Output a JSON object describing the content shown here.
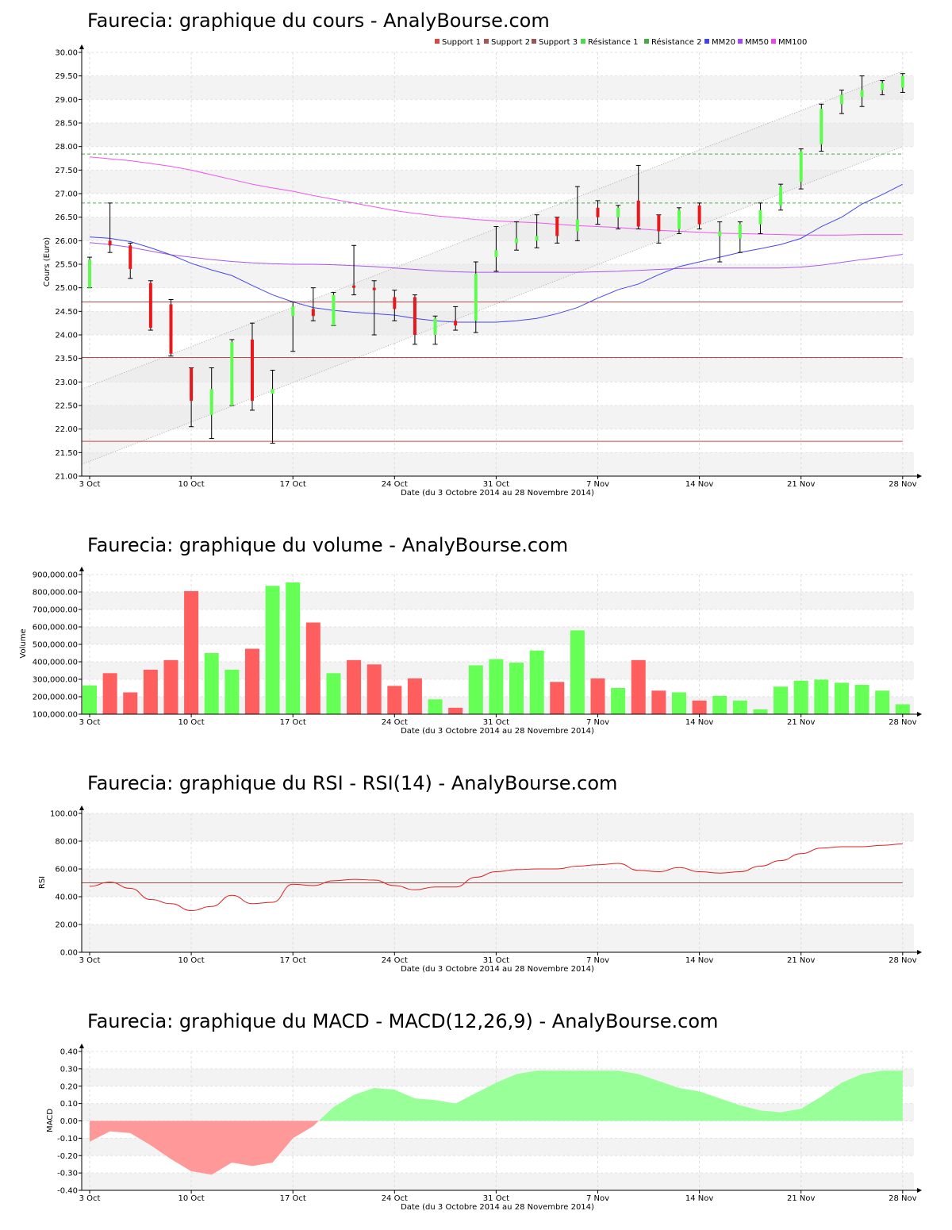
{
  "page": {
    "title": "Faurecia – AnalyBourse.com"
  },
  "x_axis": {
    "labels": [
      "3 Oct",
      "10 Oct",
      "17 Oct",
      "24 Oct",
      "31 Oct",
      "7 Nov",
      "14 Nov",
      "21 Nov",
      "28 Nov"
    ],
    "label_day_index": [
      0,
      5,
      10,
      15,
      20,
      25,
      30,
      35,
      40
    ],
    "title": "Date (du 3 Octobre 2014 au 28 Novembre 2014)"
  },
  "colors": {
    "up": "#5dfc4f",
    "down": "#e9181a",
    "volume_up": "#66ff55",
    "volume_down": "#ff5e5e",
    "mm20": "#4747ee",
    "mm50": "#aa55ee",
    "mm100": "#ee55ee",
    "support": "#c44a4a",
    "resistance": "#4caa4c",
    "rsi": "#dd2222",
    "macd_pos": "#99ff99",
    "macd_neg": "#ff9999"
  },
  "chart_data": [
    {
      "id": "price",
      "type": "candlestick",
      "title": "Faurecia: graphique du cours - AnalyBourse.com",
      "ylabel": "Cours (Euro)",
      "xlabel": "Date (du 3 Octobre 2014 au 28 Novembre 2014)",
      "ylim": [
        21.0,
        30.0
      ],
      "yticks": [
        "21.00",
        "21.50",
        "22.00",
        "22.50",
        "23.00",
        "23.50",
        "24.00",
        "24.50",
        "25.00",
        "25.50",
        "26.00",
        "26.50",
        "27.00",
        "27.50",
        "28.00",
        "28.50",
        "29.00",
        "29.50",
        "30.00"
      ],
      "legend": [
        "Support 1",
        "Support 2",
        "Support 3",
        "Résistance 1",
        "Résistance 2",
        "MM20",
        "MM50",
        "MM100"
      ],
      "legend_colors": [
        "#dd4444",
        "#aa5555",
        "#995555",
        "#44dd44",
        "#44aa44",
        "#4444ee",
        "#aa44ee",
        "#ee44ee"
      ],
      "candles": [
        {
          "date": "3 Oct",
          "open": 25.0,
          "high": 25.65,
          "low": 25.0,
          "close": 25.6
        },
        {
          "date": "6 Oct",
          "open": 26.0,
          "high": 26.8,
          "low": 25.75,
          "close": 25.9
        },
        {
          "date": "7 Oct",
          "open": 25.9,
          "high": 25.95,
          "low": 25.2,
          "close": 25.4
        },
        {
          "date": "8 Oct",
          "open": 25.1,
          "high": 25.15,
          "low": 24.1,
          "close": 24.15
        },
        {
          "date": "9 Oct",
          "open": 24.65,
          "high": 24.75,
          "low": 23.55,
          "close": 23.6
        },
        {
          "date": "10 Oct",
          "open": 23.3,
          "high": 23.3,
          "low": 22.05,
          "close": 22.6
        },
        {
          "date": "13 Oct",
          "open": 22.3,
          "high": 23.3,
          "low": 21.8,
          "close": 22.85
        },
        {
          "date": "14 Oct",
          "open": 22.5,
          "high": 23.9,
          "low": 22.5,
          "close": 23.85
        },
        {
          "date": "15 Oct",
          "open": 23.9,
          "high": 24.25,
          "low": 22.4,
          "close": 22.6
        },
        {
          "date": "16 Oct",
          "open": 22.75,
          "high": 23.25,
          "low": 21.7,
          "close": 22.85
        },
        {
          "date": "17 Oct",
          "open": 24.4,
          "high": 24.7,
          "low": 23.65,
          "close": 24.6
        },
        {
          "date": "20 Oct",
          "open": 24.55,
          "high": 25.0,
          "low": 24.3,
          "close": 24.4
        },
        {
          "date": "21 Oct",
          "open": 24.2,
          "high": 24.9,
          "low": 24.2,
          "close": 24.85
        },
        {
          "date": "22 Oct",
          "open": 25.05,
          "high": 25.9,
          "low": 24.85,
          "close": 25.0
        },
        {
          "date": "23 Oct",
          "open": 25.0,
          "high": 25.15,
          "low": 24.0,
          "close": 24.95
        },
        {
          "date": "24 Oct",
          "open": 24.8,
          "high": 24.95,
          "low": 24.3,
          "close": 24.55
        },
        {
          "date": "27 Oct",
          "open": 24.8,
          "high": 24.85,
          "low": 23.8,
          "close": 24.0
        },
        {
          "date": "28 Oct",
          "open": 24.0,
          "high": 24.4,
          "low": 23.8,
          "close": 24.35
        },
        {
          "date": "29 Oct",
          "open": 24.3,
          "high": 24.6,
          "low": 24.1,
          "close": 24.2
        },
        {
          "date": "30 Oct",
          "open": 24.3,
          "high": 25.55,
          "low": 24.05,
          "close": 25.3
        },
        {
          "date": "31 Oct",
          "open": 25.65,
          "high": 26.3,
          "low": 25.35,
          "close": 25.8
        },
        {
          "date": "3 Nov",
          "open": 25.95,
          "high": 26.4,
          "low": 25.8,
          "close": 26.05
        },
        {
          "date": "4 Nov",
          "open": 26.0,
          "high": 26.55,
          "low": 25.85,
          "close": 26.1
        },
        {
          "date": "5 Nov",
          "open": 26.5,
          "high": 26.5,
          "low": 25.95,
          "close": 26.1
        },
        {
          "date": "6 Nov",
          "open": 26.2,
          "high": 27.15,
          "low": 26.0,
          "close": 26.45
        },
        {
          "date": "7 Nov",
          "open": 26.7,
          "high": 26.85,
          "low": 26.35,
          "close": 26.5
        },
        {
          "date": "10 Nov",
          "open": 26.5,
          "high": 26.75,
          "low": 26.25,
          "close": 26.7
        },
        {
          "date": "11 Nov",
          "open": 26.85,
          "high": 27.6,
          "low": 26.25,
          "close": 26.3
        },
        {
          "date": "12 Nov",
          "open": 26.55,
          "high": 26.55,
          "low": 25.95,
          "close": 26.2
        },
        {
          "date": "13 Nov",
          "open": 26.25,
          "high": 26.7,
          "low": 26.15,
          "close": 26.65
        },
        {
          "date": "14 Nov",
          "open": 26.75,
          "high": 26.8,
          "low": 26.25,
          "close": 26.35
        },
        {
          "date": "17 Nov",
          "open": 26.1,
          "high": 26.4,
          "low": 25.55,
          "close": 26.2
        },
        {
          "date": "18 Nov",
          "open": 26.05,
          "high": 26.4,
          "low": 25.75,
          "close": 26.35
        },
        {
          "date": "19 Nov",
          "open": 26.35,
          "high": 26.8,
          "low": 26.15,
          "close": 26.65
        },
        {
          "date": "20 Nov",
          "open": 26.75,
          "high": 27.2,
          "low": 26.65,
          "close": 27.15
        },
        {
          "date": "21 Nov",
          "open": 27.25,
          "high": 27.95,
          "low": 27.1,
          "close": 27.9
        },
        {
          "date": "24 Nov",
          "open": 28.05,
          "high": 28.9,
          "low": 27.9,
          "close": 28.8
        },
        {
          "date": "25 Nov",
          "open": 28.9,
          "high": 29.2,
          "low": 28.7,
          "close": 29.1
        },
        {
          "date": "26 Nov",
          "open": 29.05,
          "high": 29.5,
          "low": 28.85,
          "close": 29.2
        },
        {
          "date": "27 Nov",
          "open": 29.2,
          "high": 29.4,
          "low": 29.1,
          "close": 29.35
        },
        {
          "date": "28 Nov",
          "open": 29.25,
          "high": 29.55,
          "low": 29.15,
          "close": 29.5
        }
      ],
      "support_levels": [
        24.7,
        23.52,
        21.74
      ],
      "resistance_levels": [
        27.84,
        26.8
      ],
      "channel": {
        "upper": [
          22.85,
          29.6
        ],
        "lower": [
          21.25,
          28.0
        ]
      },
      "mm20": [
        26.08,
        26.05,
        25.98,
        25.85,
        25.7,
        25.52,
        25.38,
        25.26,
        25.05,
        24.85,
        24.7,
        24.58,
        24.52,
        24.48,
        24.45,
        24.42,
        24.35,
        24.3,
        24.27,
        24.27,
        24.27,
        24.3,
        24.35,
        24.45,
        24.58,
        24.78,
        24.96,
        25.08,
        25.28,
        25.45,
        25.55,
        25.65,
        25.75,
        25.83,
        25.92,
        26.05,
        26.3,
        26.5,
        26.78,
        26.98,
        27.2
      ],
      "mm50": [
        25.96,
        25.92,
        25.86,
        25.78,
        25.7,
        25.65,
        25.6,
        25.56,
        25.53,
        25.51,
        25.5,
        25.5,
        25.49,
        25.47,
        25.45,
        25.42,
        25.39,
        25.36,
        25.34,
        25.33,
        25.33,
        25.33,
        25.33,
        25.33,
        25.33,
        25.34,
        25.35,
        25.37,
        25.39,
        25.41,
        25.42,
        25.42,
        25.42,
        25.42,
        25.42,
        25.44,
        25.48,
        25.54,
        25.6,
        25.65,
        25.71
      ],
      "mm100": [
        27.78,
        27.74,
        27.7,
        27.64,
        27.58,
        27.5,
        27.4,
        27.3,
        27.2,
        27.12,
        27.05,
        26.96,
        26.88,
        26.8,
        26.72,
        26.64,
        26.58,
        26.53,
        26.49,
        26.45,
        26.42,
        26.4,
        26.38,
        26.35,
        26.32,
        26.3,
        26.28,
        26.25,
        26.22,
        26.2,
        26.18,
        26.16,
        26.15,
        26.14,
        26.13,
        26.12,
        26.12,
        26.12,
        26.13,
        26.13,
        26.13
      ]
    },
    {
      "id": "volume",
      "type": "bar",
      "title": "Faurecia: graphique du volume - AnalyBourse.com",
      "ylabel": "Volume",
      "xlabel": "Date (du 3 Octobre 2014 au 28 Novembre 2014)",
      "ylim": [
        100000,
        900000
      ],
      "yticks": [
        "100,000.00",
        "200,000.00",
        "300,000.00",
        "400,000.00",
        "500,000.00",
        "600,000.00",
        "700,000.00",
        "800,000.00",
        "900,000.00"
      ],
      "values": [
        265000,
        335000,
        225000,
        355000,
        410000,
        805000,
        450000,
        355000,
        475000,
        835000,
        855000,
        625000,
        335000,
        410000,
        385000,
        262000,
        305000,
        185000,
        137000,
        380000,
        415000,
        395000,
        465000,
        285000,
        580000,
        305000,
        250000,
        410000,
        235000,
        225000,
        178000,
        205000,
        178000,
        128000,
        258000,
        292000,
        298000,
        280000,
        268000,
        235000,
        157000
      ],
      "directions": [
        "up",
        "down",
        "down",
        "down",
        "down",
        "down",
        "up",
        "up",
        "down",
        "up",
        "up",
        "down",
        "up",
        "down",
        "down",
        "down",
        "down",
        "up",
        "down",
        "up",
        "up",
        "up",
        "up",
        "down",
        "up",
        "down",
        "up",
        "down",
        "down",
        "up",
        "down",
        "up",
        "up",
        "up",
        "up",
        "up",
        "up",
        "up",
        "up",
        "up",
        "up"
      ]
    },
    {
      "id": "rsi",
      "type": "line",
      "title": "Faurecia: graphique du RSI - RSI(14) - AnalyBourse.com",
      "ylabel": "RSI",
      "xlabel": "Date (du 3 Octobre 2014 au 28 Novembre 2014)",
      "ylim": [
        0,
        100
      ],
      "yticks": [
        "0.00",
        "20.00",
        "40.00",
        "60.00",
        "80.00",
        "100.00"
      ],
      "reference": 50,
      "values": [
        47.5,
        50.5,
        46,
        38,
        35,
        30,
        33,
        41,
        35,
        36,
        49,
        48,
        51.5,
        52.5,
        52,
        48,
        45,
        47,
        47,
        54,
        58,
        59.5,
        60,
        60,
        62,
        63,
        64,
        59,
        58,
        61,
        58,
        57,
        58,
        62,
        66,
        71,
        75,
        76,
        76,
        77,
        78
      ]
    },
    {
      "id": "macd",
      "type": "area",
      "title": "Faurecia: graphique du MACD - MACD(12,26,9) - AnalyBourse.com",
      "ylabel": "MACD",
      "xlabel": "Date (du 3 Octobre 2014 au 28 Novembre 2014)",
      "ylim": [
        -0.4,
        0.4
      ],
      "yticks": [
        "-0.40",
        "-0.30",
        "-0.20",
        "-0.10",
        "0.00",
        "0.10",
        "0.20",
        "0.30",
        "0.40"
      ],
      "values": [
        -0.12,
        -0.06,
        -0.07,
        -0.14,
        -0.22,
        -0.29,
        -0.31,
        -0.24,
        -0.26,
        -0.24,
        -0.1,
        -0.03,
        0.08,
        0.15,
        0.19,
        0.18,
        0.13,
        0.12,
        0.1,
        0.16,
        0.22,
        0.27,
        0.29,
        0.29,
        0.29,
        0.29,
        0.29,
        0.27,
        0.23,
        0.19,
        0.17,
        0.13,
        0.09,
        0.06,
        0.05,
        0.07,
        0.14,
        0.22,
        0.27,
        0.29,
        0.29
      ]
    }
  ]
}
